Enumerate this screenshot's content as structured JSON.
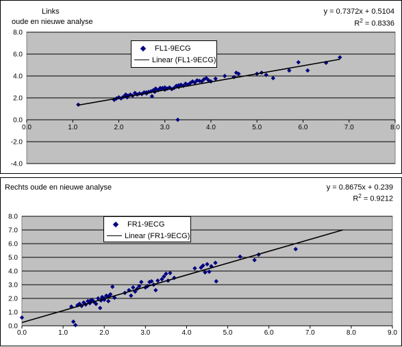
{
  "colors": {
    "plot_area": "#c0c0c0",
    "marker": "#000080",
    "trendline": "#000000",
    "gridline": "#000000"
  },
  "chart_data": [
    {
      "type": "scatter",
      "title_lines": [
        "Links",
        "oude en nieuwe analyse"
      ],
      "equation": "y = 0.7372x + 0.5104",
      "r2_prefix": "R",
      "r2_sup": "2",
      "r2_value": " = 0.8336",
      "legend_position": "top-center",
      "grid": "horizontal",
      "xlim": [
        0,
        8
      ],
      "ylim": [
        -4,
        8
      ],
      "x_ticks": [
        "0.0",
        "1.0",
        "2.0",
        "3.0",
        "4.0",
        "5.0",
        "6.0",
        "7.0",
        "8.0"
      ],
      "y_ticks": [
        "8.0",
        "6.0",
        "4.0",
        "2.0",
        "0.0",
        "-2.0",
        "-4.0"
      ],
      "trendline": {
        "slope": 0.7372,
        "intercept": 0.5104,
        "x_range": [
          1.1,
          6.8
        ]
      },
      "series": [
        {
          "name": "FL1-9ECG",
          "marker": "diamond",
          "points": [
            [
              1.12,
              1.38
            ],
            [
              1.9,
              1.82
            ],
            [
              1.95,
              1.95
            ],
            [
              2.0,
              2.05
            ],
            [
              2.05,
              1.95
            ],
            [
              2.1,
              2.1
            ],
            [
              2.15,
              2.3
            ],
            [
              2.18,
              2.05
            ],
            [
              2.2,
              2.2
            ],
            [
              2.25,
              2.3
            ],
            [
              2.3,
              2.2
            ],
            [
              2.35,
              2.45
            ],
            [
              2.4,
              2.3
            ],
            [
              2.45,
              2.4
            ],
            [
              2.5,
              2.35
            ],
            [
              2.55,
              2.5
            ],
            [
              2.6,
              2.4
            ],
            [
              2.65,
              2.55
            ],
            [
              2.7,
              2.6
            ],
            [
              2.72,
              2.15
            ],
            [
              2.75,
              2.7
            ],
            [
              2.78,
              2.55
            ],
            [
              2.8,
              2.85
            ],
            [
              2.85,
              2.7
            ],
            [
              2.9,
              2.8
            ],
            [
              2.95,
              2.9
            ],
            [
              3.0,
              2.75
            ],
            [
              3.05,
              2.85
            ],
            [
              3.1,
              2.95
            ],
            [
              3.15,
              2.8
            ],
            [
              3.2,
              2.9
            ],
            [
              3.25,
              3.1
            ],
            [
              3.3,
              3.0
            ],
            [
              3.35,
              3.2
            ],
            [
              3.4,
              3.1
            ],
            [
              3.45,
              3.3
            ],
            [
              3.5,
              3.2
            ],
            [
              3.55,
              3.35
            ],
            [
              3.6,
              3.5
            ],
            [
              3.65,
              3.4
            ],
            [
              3.7,
              3.6
            ],
            [
              3.75,
              3.55
            ],
            [
              3.8,
              3.5
            ],
            [
              3.85,
              3.7
            ],
            [
              3.9,
              3.8
            ],
            [
              3.95,
              3.6
            ],
            [
              4.0,
              3.5
            ],
            [
              4.1,
              3.75
            ],
            [
              4.3,
              4.0
            ],
            [
              4.5,
              3.9
            ],
            [
              4.55,
              4.3
            ],
            [
              4.6,
              4.2
            ],
            [
              5.0,
              4.2
            ],
            [
              5.1,
              4.3
            ],
            [
              5.2,
              4.1
            ],
            [
              5.35,
              3.8
            ],
            [
              5.7,
              4.5
            ],
            [
              5.9,
              5.25
            ],
            [
              6.1,
              4.5
            ],
            [
              6.5,
              5.2
            ],
            [
              6.8,
              5.7
            ],
            [
              3.28,
              0.0
            ],
            [
              2.9,
              2.9
            ],
            [
              3.3,
              3.15
            ],
            [
              3.0,
              2.95
            ],
            [
              2.6,
              2.5
            ]
          ]
        }
      ],
      "legend_trend_label": "Linear (FL1-9ECG)"
    },
    {
      "type": "scatter",
      "title_lines": [
        "Rechts oude en nieuwe analyse"
      ],
      "equation": "y = 0.8675x + 0.239",
      "r2_prefix": "R",
      "r2_sup": "2",
      "r2_value": " = 0.9212",
      "legend_position": "top-left",
      "grid": "horizontal",
      "xlim": [
        0,
        9
      ],
      "ylim": [
        0,
        8
      ],
      "x_ticks": [
        "0.0",
        "1.0",
        "2.0",
        "3.0",
        "4.0",
        "5.0",
        "6.0",
        "7.0",
        "8.0",
        "9.0"
      ],
      "y_ticks": [
        "8.0",
        "7.0",
        "6.0",
        "5.0",
        "4.0",
        "3.0",
        "2.0",
        "1.0",
        "0.0"
      ],
      "trendline": {
        "slope": 0.8675,
        "intercept": 0.239,
        "x_range": [
          0.0,
          7.8
        ]
      },
      "series": [
        {
          "name": "FR1-9ECG",
          "marker": "diamond",
          "points": [
            [
              0.0,
              0.6
            ],
            [
              1.2,
              1.4
            ],
            [
              1.25,
              0.3
            ],
            [
              1.3,
              0.05
            ],
            [
              1.35,
              1.5
            ],
            [
              1.4,
              1.6
            ],
            [
              1.45,
              1.45
            ],
            [
              1.5,
              1.7
            ],
            [
              1.55,
              1.55
            ],
            [
              1.6,
              1.8
            ],
            [
              1.65,
              1.65
            ],
            [
              1.7,
              1.9
            ],
            [
              1.75,
              1.75
            ],
            [
              1.8,
              1.6
            ],
            [
              1.85,
              2.0
            ],
            [
              1.9,
              1.3
            ],
            [
              1.92,
              1.85
            ],
            [
              1.95,
              2.1
            ],
            [
              2.0,
              1.9
            ],
            [
              2.05,
              2.2
            ],
            [
              2.1,
              1.8
            ],
            [
              2.15,
              2.3
            ],
            [
              2.2,
              2.85
            ],
            [
              2.25,
              2.05
            ],
            [
              2.5,
              2.4
            ],
            [
              2.6,
              2.6
            ],
            [
              2.65,
              2.2
            ],
            [
              2.7,
              2.8
            ],
            [
              2.75,
              2.5
            ],
            [
              2.8,
              2.7
            ],
            [
              2.85,
              2.9
            ],
            [
              2.9,
              3.2
            ],
            [
              3.0,
              2.8
            ],
            [
              3.05,
              2.9
            ],
            [
              3.1,
              3.2
            ],
            [
              3.2,
              3.0
            ],
            [
              3.25,
              2.6
            ],
            [
              3.3,
              3.3
            ],
            [
              3.4,
              3.4
            ],
            [
              3.45,
              3.6
            ],
            [
              3.5,
              3.8
            ],
            [
              3.55,
              3.3
            ],
            [
              3.6,
              3.85
            ],
            [
              3.7,
              3.5
            ],
            [
              4.2,
              4.2
            ],
            [
              4.35,
              4.25
            ],
            [
              4.4,
              4.4
            ],
            [
              4.45,
              3.9
            ],
            [
              4.5,
              4.5
            ],
            [
              4.55,
              3.95
            ],
            [
              4.6,
              4.35
            ],
            [
              4.7,
              4.6
            ],
            [
              4.72,
              3.25
            ],
            [
              5.3,
              5.05
            ],
            [
              5.65,
              4.8
            ],
            [
              5.75,
              5.2
            ],
            [
              6.65,
              5.6
            ],
            [
              2.0,
              2.0
            ],
            [
              2.1,
              2.15
            ],
            [
              1.65,
              1.8
            ],
            [
              3.15,
              3.25
            ]
          ]
        }
      ],
      "legend_trend_label": "Linear (FR1-9ECG)"
    }
  ]
}
